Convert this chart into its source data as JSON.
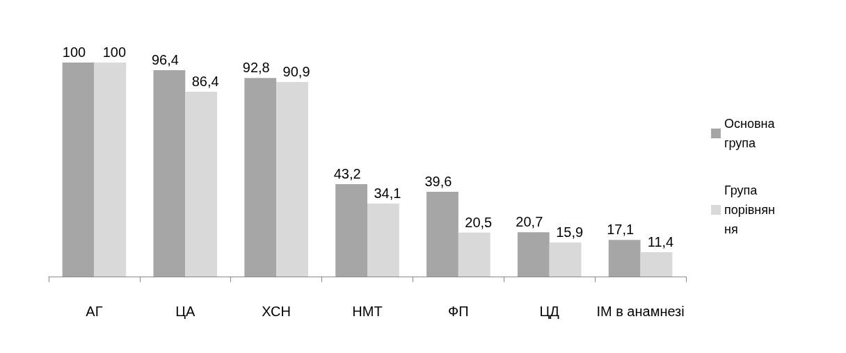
{
  "chart_data": {
    "type": "bar",
    "categories": [
      "АГ",
      "ЦА",
      "ХСН",
      "НМТ",
      "ФП",
      "ЦД",
      "ІМ в анамнезі"
    ],
    "series": [
      {
        "name": "Основна група",
        "color": "#a6a6a6",
        "values": [
          100,
          96.4,
          92.8,
          43.2,
          39.6,
          20.7,
          17.1
        ],
        "value_labels": [
          "100",
          "96,4",
          "92,8",
          "43,2",
          "39,6",
          "20,7",
          "17,1"
        ]
      },
      {
        "name": "Група порівняння",
        "color": "#d9d9d9",
        "values": [
          100,
          86.4,
          90.9,
          34.1,
          20.5,
          15.9,
          11.4
        ],
        "value_labels": [
          "100",
          "86,4",
          "90,9",
          "34,1",
          "20,5",
          "15,9",
          "11,4"
        ]
      }
    ],
    "legend": "right"
  }
}
